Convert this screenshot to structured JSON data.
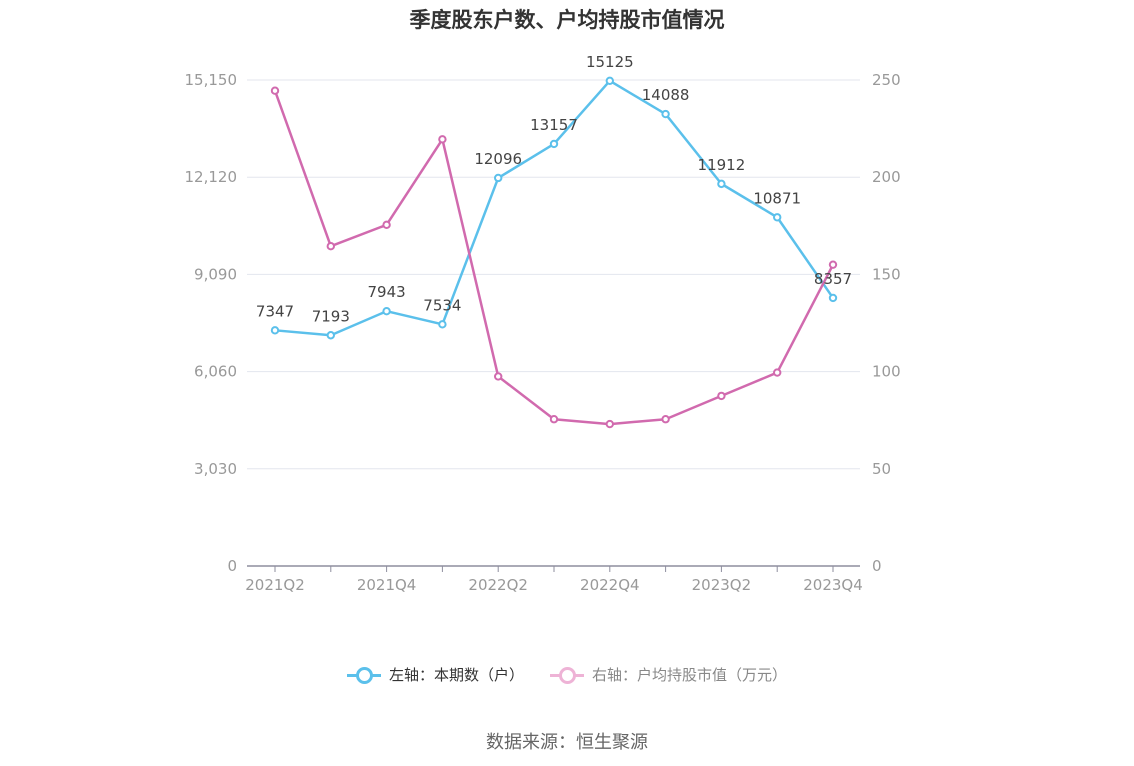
{
  "chart_data": {
    "type": "line",
    "title": "季度股东户数、户均持股市值情况",
    "categories": [
      "2021Q2",
      "2021Q3",
      "2021Q4",
      "2022Q1",
      "2022Q2",
      "2022Q3",
      "2022Q4",
      "2023Q1",
      "2023Q2",
      "2023Q3",
      "2023Q4"
    ],
    "x_tick_labels": [
      "2021Q2",
      "2021Q4",
      "2022Q2",
      "2022Q4",
      "2023Q2",
      "2023Q4"
    ],
    "left_axis": {
      "ylim": [
        0,
        15150
      ],
      "ticks": [
        "0",
        "3,030",
        "6,060",
        "9,090",
        "12,120",
        "15,150"
      ]
    },
    "right_axis": {
      "ylim": [
        0,
        250
      ],
      "ticks": [
        "0",
        "50",
        "100",
        "150",
        "200",
        "250"
      ]
    },
    "series": [
      {
        "name": "左轴：本期数（户）",
        "axis": "left",
        "color": "#5bc0eb",
        "values": [
          7347,
          7193,
          7943,
          7534,
          12096,
          13157,
          15125,
          14088,
          11912,
          10871,
          8357
        ],
        "labels": [
          "7347",
          "7193",
          "7943",
          "7534",
          "12096",
          "13157",
          "15125",
          "14088",
          "11912",
          "10871",
          "8357"
        ]
      },
      {
        "name": "右轴：户均持股市值（万元）",
        "axis": "right",
        "color": "#d16aae",
        "values": [
          244.5,
          164.5,
          175.5,
          219.5,
          97.5,
          75.5,
          73,
          75.5,
          87.5,
          99.5,
          155
        ]
      }
    ],
    "grid": true,
    "legend_position": "bottom"
  },
  "source": "数据来源：恒生聚源"
}
